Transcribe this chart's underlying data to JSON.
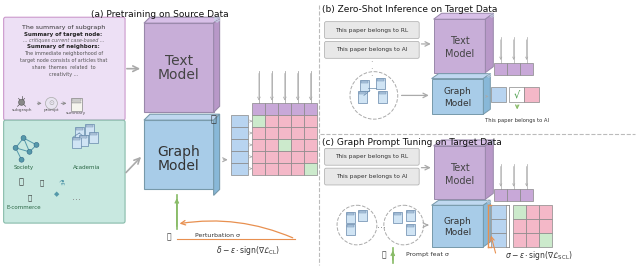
{
  "bg_color": "#ffffff",
  "panel_a_title": "(a) Pretraining on Source Data",
  "panel_b_title": "(b) Zero-Shot Inference on Target Data",
  "panel_c_title": "(c) Graph Prompt Tuning on Target Data",
  "text_model_color": "#c8aed8",
  "graph_model_color": "#a8cce8",
  "purple_cell_color": "#c8a8d8",
  "pink_cell_color": "#f4b8c8",
  "green_cell_color": "#cceacc",
  "blue_cell_color": "#b8d4f0",
  "subgraph_text_bg": "#ede0f5",
  "source_graph_bg": "#c8e8e0",
  "perturbation_color": "#e89050",
  "green_arrow_color": "#88bb66",
  "arrow_color": "#b0b0b0",
  "white_cell": "#ffffff",
  "gray_line": "#999999"
}
